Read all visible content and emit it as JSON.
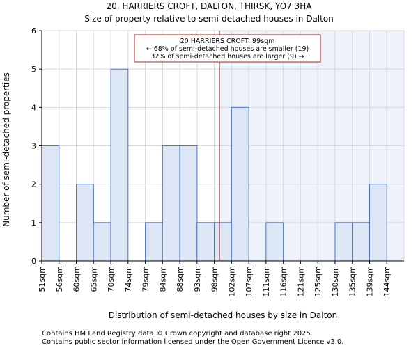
{
  "chart_data": {
    "type": "bar",
    "title": "20, HARRIERS CROFT, DALTON, THIRSK, YO7 3HA",
    "subtitle": "Size of property relative to semi-detached houses in Dalton",
    "xlabel": "Distribution of semi-detached houses by size in Dalton",
    "ylabel": "Number of semi-detached properties",
    "categories": [
      "51sqm",
      "56sqm",
      "60sqm",
      "65sqm",
      "70sqm",
      "74sqm",
      "79sqm",
      "84sqm",
      "88sqm",
      "93sqm",
      "98sqm",
      "102sqm",
      "107sqm",
      "111sqm",
      "116sqm",
      "121sqm",
      "125sqm",
      "130sqm",
      "135sqm",
      "139sqm",
      "144sqm"
    ],
    "values": [
      3,
      0,
      2,
      1,
      5,
      0,
      1,
      3,
      3,
      1,
      1,
      4,
      0,
      1,
      0,
      0,
      0,
      1,
      1,
      2,
      0
    ],
    "ylim": [
      0,
      6
    ],
    "yticks": [
      0,
      1,
      2,
      3,
      4,
      5,
      6
    ],
    "grid": true,
    "marker": {
      "category_index": 10.3,
      "color": "#b22222",
      "line1": "20 HARRIERS CROFT: 99sqm",
      "line2": "← 68% of semi-detached houses are smaller (19)",
      "line3": "32% of semi-detached houses are larger (9) →"
    },
    "colors": {
      "bar_fill": "#dce6f5",
      "bar_edge": "#4a74c4",
      "highlight_bg": "#eef2fb",
      "grid": "#d5d8dd"
    }
  },
  "footer": {
    "line1": "Contains HM Land Registry data © Crown copyright and database right 2025.",
    "line2": "Contains public sector information licensed under the Open Government Licence v3.0."
  }
}
